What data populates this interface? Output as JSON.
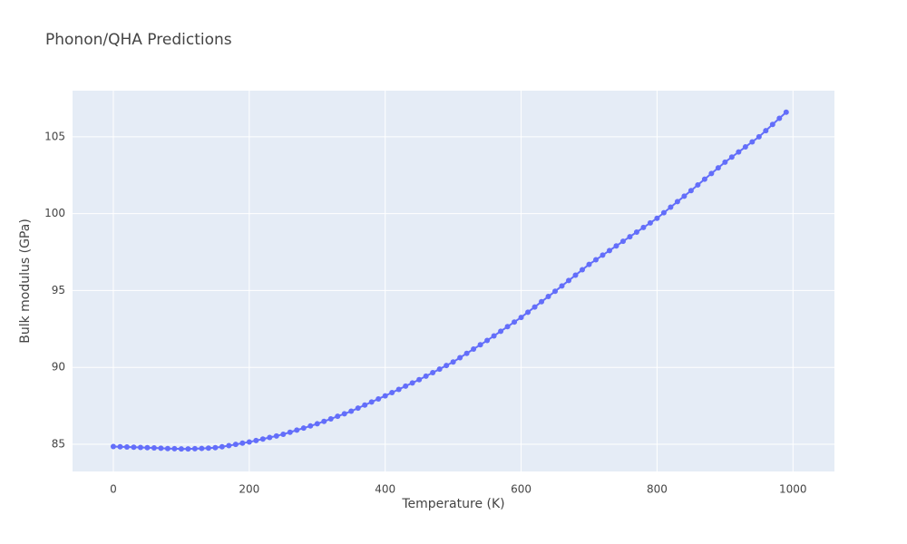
{
  "chart_data": {
    "type": "line",
    "title": "Phonon/QHA Predictions",
    "x_label": "Temperature (K)",
    "y_label": "Bulk modulus (GPa)",
    "x": [
      0,
      10,
      20,
      30,
      40,
      50,
      60,
      70,
      80,
      90,
      100,
      110,
      120,
      130,
      140,
      150,
      160,
      170,
      180,
      190,
      200,
      210,
      220,
      230,
      240,
      250,
      260,
      270,
      280,
      290,
      300,
      310,
      320,
      330,
      340,
      350,
      360,
      370,
      380,
      390,
      400,
      410,
      420,
      430,
      440,
      450,
      460,
      470,
      480,
      490,
      500,
      510,
      520,
      530,
      540,
      550,
      560,
      570,
      580,
      590,
      600,
      610,
      620,
      630,
      640,
      650,
      660,
      670,
      680,
      690,
      700,
      710,
      720,
      730,
      740,
      750,
      760,
      770,
      780,
      790,
      800,
      810,
      820,
      830,
      840,
      850,
      860,
      870,
      880,
      890,
      900,
      910,
      920,
      930,
      940,
      950,
      960,
      970,
      980,
      990
    ],
    "series": [
      {
        "color": "#636efa",
        "values": [
          84.85,
          84.84,
          84.82,
          84.81,
          84.79,
          84.78,
          84.76,
          84.74,
          84.72,
          84.71,
          84.7,
          84.7,
          84.71,
          84.73,
          84.75,
          84.78,
          84.84,
          84.91,
          84.99,
          85.07,
          85.15,
          85.24,
          85.34,
          85.44,
          85.54,
          85.65,
          85.78,
          85.92,
          86.05,
          86.19,
          86.33,
          86.49,
          86.65,
          86.82,
          86.98,
          87.15,
          87.35,
          87.55,
          87.75,
          87.95,
          88.15,
          88.36,
          88.57,
          88.78,
          88.99,
          89.2,
          89.43,
          89.66,
          89.89,
          90.12,
          90.35,
          90.63,
          90.91,
          91.19,
          91.47,
          91.75,
          92.05,
          92.35,
          92.65,
          92.95,
          93.25,
          93.59,
          93.93,
          94.27,
          94.61,
          94.95,
          95.3,
          95.65,
          96.0,
          96.35,
          96.7,
          97.0,
          97.3,
          97.6,
          97.9,
          98.2,
          98.5,
          98.8,
          99.1,
          99.4,
          99.7,
          100.06,
          100.42,
          100.78,
          101.14,
          101.5,
          101.87,
          102.24,
          102.61,
          102.98,
          103.35,
          103.68,
          104.01,
          104.34,
          104.67,
          105.0,
          105.4,
          105.8,
          106.2,
          106.6
        ]
      }
    ],
    "xlim": [
      -60,
      1061
    ],
    "xticks": [
      0,
      200,
      400,
      600,
      800,
      1000
    ],
    "ylim": [
      83.23,
      108.0
    ],
    "yticks": [
      85,
      90,
      95,
      100,
      105
    ],
    "grid": true
  }
}
